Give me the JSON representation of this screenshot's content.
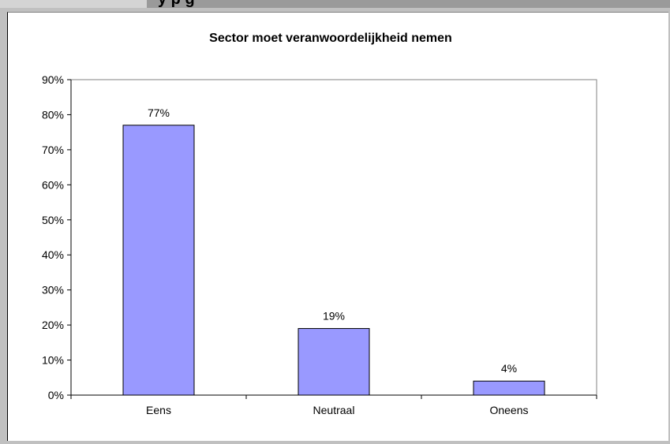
{
  "header": {
    "partial_title": "y         p                                     g"
  },
  "chart_data": {
    "type": "bar",
    "title": "Sector moet veranwoordelijkheid nemen",
    "categories": [
      "Eens",
      "Neutraal",
      "Oneens"
    ],
    "values": [
      77,
      19,
      4
    ],
    "data_labels": [
      "77%",
      "19%",
      "4%"
    ],
    "ylim": [
      0,
      90
    ],
    "yticks": [
      0,
      10,
      20,
      30,
      40,
      50,
      60,
      70,
      80,
      90
    ],
    "ytick_labels": [
      "0%",
      "10%",
      "20%",
      "30%",
      "40%",
      "50%",
      "60%",
      "70%",
      "80%",
      "90%"
    ],
    "xlabel": "",
    "ylabel": "",
    "bar_color": "#9999ff",
    "grid": false,
    "legend": "none"
  }
}
